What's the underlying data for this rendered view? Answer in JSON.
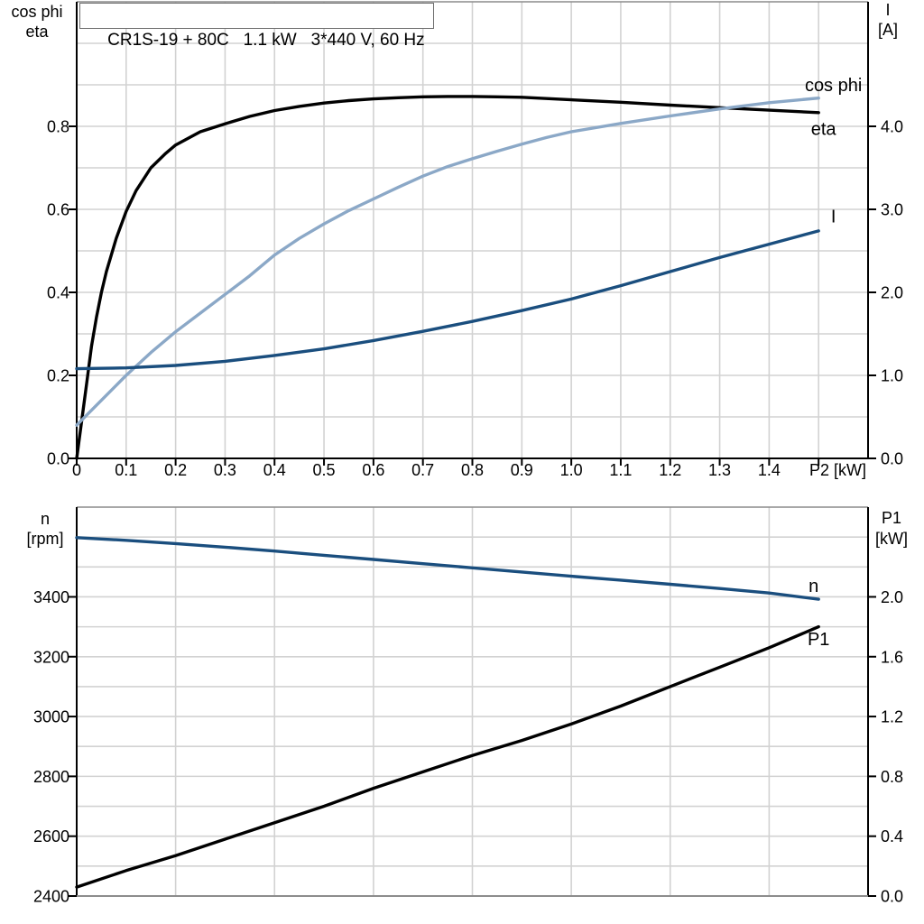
{
  "title": "CR1S-19 + 80C   1.1 kW   3*440 V, 60 Hz",
  "colors": {
    "black": "#000000",
    "dark_blue": "#1a4e7e",
    "light_blue": "#8ba8c7",
    "grid": "#d2d2d2",
    "frame_gray": "#8c8c8c",
    "text": "#000000"
  },
  "chart_data": [
    {
      "type": "line",
      "id": "top-chart",
      "x_axis": {
        "range": [
          0,
          1.6
        ],
        "grid_step": 0.1,
        "ticks": [
          0,
          0.1,
          0.2,
          0.3,
          0.4,
          0.5,
          0.6,
          0.7,
          0.8,
          0.9,
          1.0,
          1.1,
          1.2,
          1.3,
          1.4,
          1.5
        ],
        "tick_labels": [
          "0",
          "0.1",
          "0.2",
          "0.3",
          "0.4",
          "0.5",
          "0.6",
          "0.7",
          "0.8",
          "0.9",
          "1.0",
          "1.1",
          "1.2",
          "1.3",
          "1.4"
        ],
        "unit_label": "P2 [kW]"
      },
      "left_axis": {
        "header_lines": [
          "cos phi",
          "eta"
        ],
        "range": [
          0,
          1.1
        ],
        "grid_step": 0.1,
        "ticks": [
          0,
          0.2,
          0.4,
          0.6,
          0.8
        ],
        "tick_labels": [
          "0.0",
          "0.2",
          "0.4",
          "0.6",
          "0.8"
        ]
      },
      "right_axis": {
        "header_lines": [
          "I",
          "[A]"
        ],
        "range": [
          0,
          5.5
        ],
        "ticks": [
          0,
          1,
          2,
          3,
          4
        ],
        "tick_labels": [
          "0.0",
          "1.0",
          "2.0",
          "3.0",
          "4.0"
        ]
      },
      "series": [
        {
          "name": "eta",
          "label": "eta",
          "axis": "left",
          "color_key": "black",
          "label_at": [
            1.51,
            0.795
          ],
          "points": [
            [
              0,
              0
            ],
            [
              0.01,
              0.09
            ],
            [
              0.02,
              0.18
            ],
            [
              0.03,
              0.27
            ],
            [
              0.04,
              0.34
            ],
            [
              0.05,
              0.4
            ],
            [
              0.06,
              0.45
            ],
            [
              0.08,
              0.53
            ],
            [
              0.1,
              0.595
            ],
            [
              0.12,
              0.645
            ],
            [
              0.15,
              0.7
            ],
            [
              0.18,
              0.735
            ],
            [
              0.2,
              0.755
            ],
            [
              0.25,
              0.787
            ],
            [
              0.3,
              0.806
            ],
            [
              0.35,
              0.824
            ],
            [
              0.4,
              0.838
            ],
            [
              0.45,
              0.848
            ],
            [
              0.5,
              0.856
            ],
            [
              0.55,
              0.862
            ],
            [
              0.6,
              0.866
            ],
            [
              0.65,
              0.869
            ],
            [
              0.7,
              0.871
            ],
            [
              0.75,
              0.872
            ],
            [
              0.8,
              0.872
            ],
            [
              0.85,
              0.871
            ],
            [
              0.9,
              0.87
            ],
            [
              0.95,
              0.867
            ],
            [
              1.0,
              0.864
            ],
            [
              1.1,
              0.858
            ],
            [
              1.2,
              0.851
            ],
            [
              1.3,
              0.845
            ],
            [
              1.4,
              0.839
            ],
            [
              1.5,
              0.833
            ]
          ]
        },
        {
          "name": "cos phi",
          "label": "cos phi",
          "axis": "left",
          "color_key": "light_blue",
          "label_at": [
            1.53,
            0.9
          ],
          "points": [
            [
              0,
              0.08
            ],
            [
              0.05,
              0.14
            ],
            [
              0.1,
              0.2
            ],
            [
              0.15,
              0.255
            ],
            [
              0.2,
              0.305
            ],
            [
              0.25,
              0.35
            ],
            [
              0.3,
              0.395
            ],
            [
              0.35,
              0.44
            ],
            [
              0.4,
              0.49
            ],
            [
              0.45,
              0.53
            ],
            [
              0.5,
              0.565
            ],
            [
              0.55,
              0.597
            ],
            [
              0.6,
              0.625
            ],
            [
              0.65,
              0.653
            ],
            [
              0.7,
              0.68
            ],
            [
              0.75,
              0.703
            ],
            [
              0.8,
              0.722
            ],
            [
              0.85,
              0.74
            ],
            [
              0.9,
              0.757
            ],
            [
              0.95,
              0.773
            ],
            [
              1.0,
              0.787
            ],
            [
              1.1,
              0.807
            ],
            [
              1.2,
              0.825
            ],
            [
              1.3,
              0.842
            ],
            [
              1.4,
              0.857
            ],
            [
              1.5,
              0.868
            ]
          ]
        },
        {
          "name": "I",
          "label": "I",
          "axis": "right",
          "color_key": "dark_blue",
          "label_at": [
            1.53,
            2.92
          ],
          "points": [
            [
              0,
              1.08
            ],
            [
              0.1,
              1.09
            ],
            [
              0.2,
              1.12
            ],
            [
              0.3,
              1.17
            ],
            [
              0.4,
              1.24
            ],
            [
              0.5,
              1.32
            ],
            [
              0.6,
              1.42
            ],
            [
              0.7,
              1.53
            ],
            [
              0.8,
              1.65
            ],
            [
              0.9,
              1.78
            ],
            [
              1.0,
              1.92
            ],
            [
              1.1,
              2.08
            ],
            [
              1.2,
              2.25
            ],
            [
              1.3,
              2.42
            ],
            [
              1.4,
              2.58
            ],
            [
              1.5,
              2.74
            ]
          ]
        }
      ]
    },
    {
      "type": "line",
      "id": "bottom-chart",
      "x_axis": {
        "range": [
          0,
          1.6
        ],
        "grid_step": 0.2,
        "ticks": [],
        "tick_labels": [],
        "unit_label": ""
      },
      "left_axis": {
        "header_lines": [
          "n",
          "[rpm]"
        ],
        "range": [
          2400,
          3700
        ],
        "grid_step": 100,
        "ticks": [
          2400,
          2600,
          2800,
          3000,
          3200,
          3400
        ],
        "tick_labels": [
          "2400",
          "2600",
          "2800",
          "3000",
          "3200",
          "3400"
        ]
      },
      "right_axis": {
        "header_lines": [
          "P1",
          "[kW]"
        ],
        "range": [
          0,
          2.6
        ],
        "ticks": [
          0,
          0.4,
          0.8,
          1.2,
          1.6,
          2.0
        ],
        "tick_labels": [
          "0.0",
          "0.4",
          "0.8",
          "1.2",
          "1.6",
          "2.0"
        ]
      },
      "series": [
        {
          "name": "n",
          "label": "n",
          "axis": "left",
          "color_key": "dark_blue",
          "label_at": [
            1.49,
            3437
          ],
          "points": [
            [
              0,
              3598
            ],
            [
              0.1,
              3589
            ],
            [
              0.2,
              3578
            ],
            [
              0.3,
              3566
            ],
            [
              0.4,
              3553
            ],
            [
              0.5,
              3539
            ],
            [
              0.6,
              3525
            ],
            [
              0.7,
              3511
            ],
            [
              0.8,
              3497
            ],
            [
              0.9,
              3483
            ],
            [
              1.0,
              3469
            ],
            [
              1.1,
              3456
            ],
            [
              1.2,
              3442
            ],
            [
              1.3,
              3428
            ],
            [
              1.4,
              3413
            ],
            [
              1.5,
              3392
            ]
          ]
        },
        {
          "name": "P1",
          "label": "P1",
          "axis": "right",
          "color_key": "black",
          "label_at": [
            1.5,
            1.72
          ],
          "points": [
            [
              0,
              0.06
            ],
            [
              0.1,
              0.17
            ],
            [
              0.2,
              0.27
            ],
            [
              0.3,
              0.38
            ],
            [
              0.4,
              0.49
            ],
            [
              0.5,
              0.6
            ],
            [
              0.6,
              0.72
            ],
            [
              0.7,
              0.83
            ],
            [
              0.8,
              0.94
            ],
            [
              0.9,
              1.04
            ],
            [
              1.0,
              1.15
            ],
            [
              1.1,
              1.27
            ],
            [
              1.2,
              1.4
            ],
            [
              1.3,
              1.53
            ],
            [
              1.4,
              1.66
            ],
            [
              1.5,
              1.8
            ]
          ]
        }
      ]
    }
  ]
}
